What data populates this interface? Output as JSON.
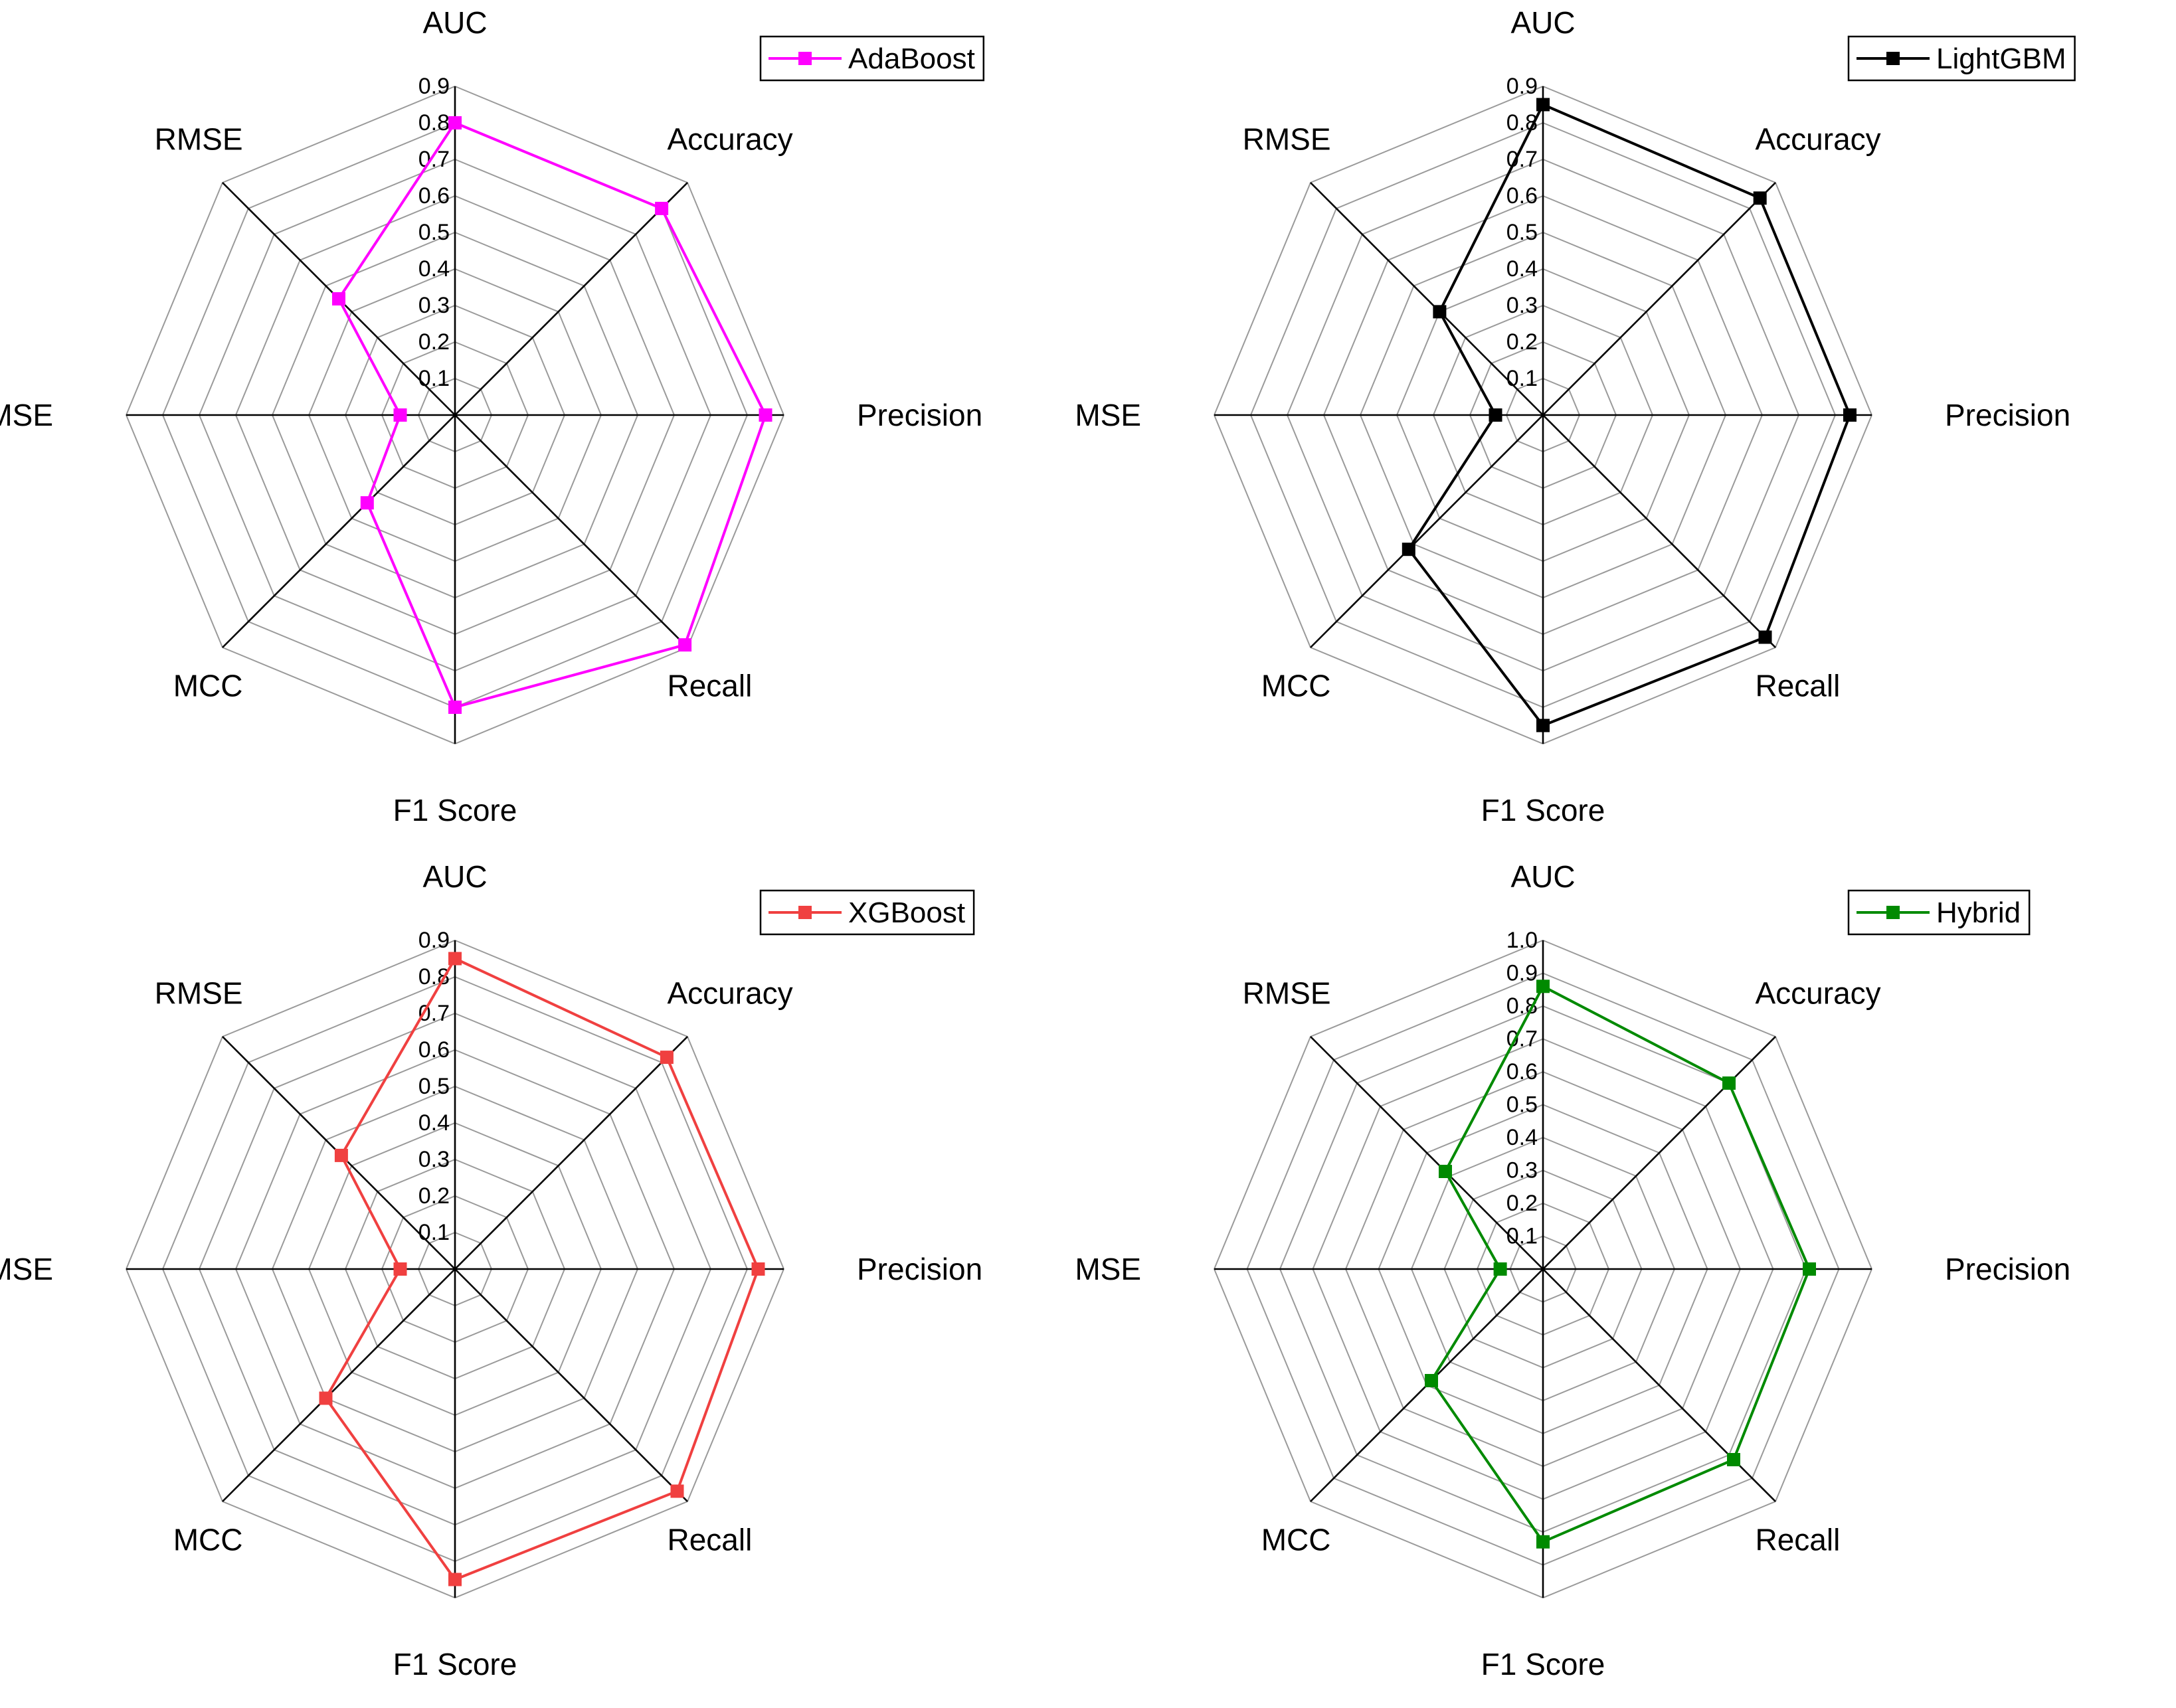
{
  "chart_data": [
    {
      "type": "radar",
      "axes": [
        "AUC",
        "Accuracy",
        "Precision",
        "Recall",
        "F1 Score",
        "MCC",
        "MSE",
        "RMSE"
      ],
      "rmax": 0.9,
      "ticks": [
        "0.1",
        "0.2",
        "0.3",
        "0.4",
        "0.5",
        "0.6",
        "0.7",
        "0.8",
        "0.9"
      ],
      "tick_values": [
        0.1,
        0.2,
        0.3,
        0.4,
        0.5,
        0.6,
        0.7,
        0.8,
        0.9
      ],
      "legend_position": "top-right",
      "series": [
        {
          "name": "AdaBoost",
          "color": "#ff00ff",
          "values": [
            0.8,
            0.8,
            0.85,
            0.89,
            0.8,
            0.34,
            0.15,
            0.45
          ]
        }
      ]
    },
    {
      "type": "radar",
      "axes": [
        "AUC",
        "Accuracy",
        "Precision",
        "Recall",
        "F1 Score",
        "MCC",
        "MSE",
        "RMSE"
      ],
      "rmax": 0.9,
      "ticks": [
        "0.1",
        "0.2",
        "0.3",
        "0.4",
        "0.5",
        "0.6",
        "0.7",
        "0.8",
        "0.9"
      ],
      "tick_values": [
        0.1,
        0.2,
        0.3,
        0.4,
        0.5,
        0.6,
        0.7,
        0.8,
        0.9
      ],
      "legend_position": "top-right",
      "series": [
        {
          "name": "LightGBM",
          "color": "#000000",
          "values": [
            0.85,
            0.84,
            0.84,
            0.86,
            0.85,
            0.52,
            0.13,
            0.4
          ]
        }
      ]
    },
    {
      "type": "radar",
      "axes": [
        "AUC",
        "Accuracy",
        "Precision",
        "Recall",
        "F1 Score",
        "MCC",
        "MSE",
        "RMSE"
      ],
      "rmax": 0.9,
      "ticks": [
        "0.1",
        "0.2",
        "0.3",
        "0.4",
        "0.5",
        "0.6",
        "0.7",
        "0.8",
        "0.9"
      ],
      "tick_values": [
        0.1,
        0.2,
        0.3,
        0.4,
        0.5,
        0.6,
        0.7,
        0.8,
        0.9
      ],
      "legend_position": "top-right",
      "series": [
        {
          "name": "XGBoost",
          "color": "#f04040",
          "values": [
            0.85,
            0.82,
            0.83,
            0.86,
            0.85,
            0.5,
            0.15,
            0.44
          ]
        }
      ]
    },
    {
      "type": "radar",
      "axes": [
        "AUC",
        "Accuracy",
        "Precision",
        "Recall",
        "F1 Score",
        "MCC",
        "MSE",
        "RMSE"
      ],
      "rmax": 1.0,
      "ticks": [
        "0.1",
        "0.2",
        "0.3",
        "0.4",
        "0.5",
        "0.6",
        "0.7",
        "0.8",
        "0.9",
        "1.0"
      ],
      "tick_values": [
        0.1,
        0.2,
        0.3,
        0.4,
        0.5,
        0.6,
        0.7,
        0.8,
        0.9,
        1.0
      ],
      "legend_position": "top-right",
      "series": [
        {
          "name": "Hybrid",
          "color": "#008a00",
          "values": [
            0.86,
            0.8,
            0.81,
            0.82,
            0.83,
            0.48,
            0.13,
            0.42
          ]
        }
      ]
    }
  ]
}
